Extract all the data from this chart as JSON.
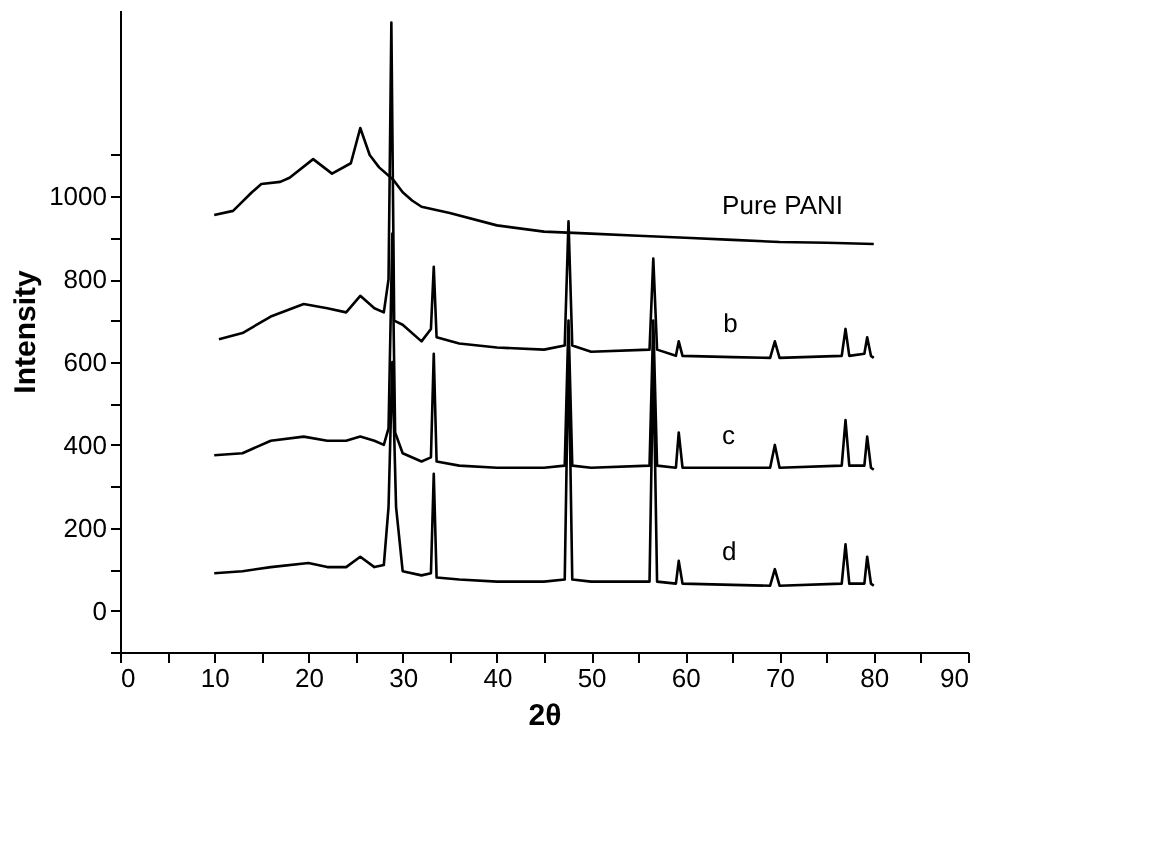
{
  "chart_data": {
    "type": "line",
    "xlabel": "2θ",
    "ylabel": "Intensity",
    "xlim": [
      0,
      90
    ],
    "ylim": [
      -100,
      1450
    ],
    "xticks": [
      0,
      {
        "value": 5,
        "label": null
      },
      10,
      {
        "value": 15,
        "label": null
      },
      20,
      {
        "value": 25,
        "label": null
      },
      30,
      {
        "value": 35,
        "label": null
      },
      40,
      {
        "value": 45,
        "label": null
      },
      50,
      {
        "value": 55,
        "label": null
      },
      60,
      {
        "value": 65,
        "label": null
      },
      70,
      {
        "value": 75,
        "label": null
      },
      80,
      {
        "value": 85,
        "label": null
      },
      90
    ],
    "yticks": [
      {
        "value": -100,
        "label": null
      },
      0,
      {
        "value": 100,
        "label": null
      },
      200,
      {
        "value": 300,
        "label": null
      },
      400,
      {
        "value": 500,
        "label": null
      },
      600,
      {
        "value": 700,
        "label": null
      },
      800,
      {
        "value": 900,
        "label": null
      },
      1000,
      {
        "value": 1100,
        "label": null
      }
    ],
    "grid": false,
    "legend": false,
    "marker": "none",
    "line_style": "solid",
    "series": [
      {
        "name": "Pure PANI",
        "color": "#000000",
        "x": [
          10,
          12,
          14,
          15,
          17,
          18,
          20.5,
          22.5,
          24.5,
          25.5,
          26.5,
          27.5,
          29,
          30,
          31,
          32,
          35,
          40,
          45,
          50,
          55,
          60,
          65,
          70,
          75,
          80
        ],
        "values": [
          955,
          965,
          1010,
          1030,
          1035,
          1045,
          1090,
          1055,
          1080,
          1165,
          1100,
          1070,
          1040,
          1010,
          990,
          975,
          960,
          930,
          915,
          910,
          905,
          900,
          895,
          890,
          888,
          885
        ]
      },
      {
        "name": "b",
        "color": "#000000",
        "x": [
          10.5,
          13,
          16,
          19.5,
          22,
          24,
          25.5,
          27,
          28,
          28.5,
          28.8,
          29.1,
          30,
          32,
          33,
          33.3,
          33.6,
          36,
          40,
          45,
          47.2,
          47.6,
          48,
          50,
          56.2,
          56.6,
          57,
          59,
          59.3,
          59.7,
          65,
          69,
          69.5,
          70,
          76.6,
          77,
          77.4,
          79,
          79.3,
          79.7,
          80
        ],
        "values": [
          655,
          670,
          710,
          740,
          730,
          720,
          760,
          730,
          720,
          800,
          1420,
          700,
          690,
          650,
          680,
          830,
          660,
          645,
          635,
          630,
          640,
          940,
          640,
          625,
          630,
          850,
          630,
          615,
          650,
          615,
          612,
          610,
          650,
          610,
          615,
          680,
          615,
          620,
          660,
          615,
          610
        ]
      },
      {
        "name": "c",
        "color": "#000000",
        "x": [
          10,
          13,
          16,
          19.5,
          22,
          24,
          25.5,
          27,
          28,
          28.5,
          28.9,
          29.2,
          30,
          32,
          33,
          33.3,
          33.6,
          36,
          40,
          45,
          47.2,
          47.6,
          48,
          50,
          56.2,
          56.6,
          57,
          59,
          59.3,
          59.7,
          65,
          69,
          69.5,
          70,
          76.6,
          77,
          77.4,
          79,
          79.3,
          79.7,
          80
        ],
        "values": [
          375,
          380,
          410,
          420,
          410,
          410,
          420,
          410,
          400,
          440,
          910,
          430,
          380,
          360,
          370,
          620,
          360,
          350,
          345,
          345,
          350,
          700,
          350,
          345,
          350,
          700,
          350,
          345,
          430,
          345,
          345,
          345,
          400,
          345,
          350,
          460,
          350,
          350,
          420,
          345,
          340
        ]
      },
      {
        "name": "d",
        "color": "#000000",
        "x": [
          10,
          13,
          16,
          20,
          22,
          24,
          25.5,
          27,
          28,
          28.5,
          28.9,
          29.3,
          30,
          32,
          33,
          33.3,
          33.6,
          36,
          40,
          45,
          47.2,
          47.6,
          48,
          50,
          56.2,
          56.6,
          57,
          59,
          59.3,
          59.7,
          65,
          69,
          69.5,
          70,
          76.6,
          77,
          77.4,
          79,
          79.3,
          79.7,
          80
        ],
        "values": [
          90,
          95,
          105,
          115,
          105,
          105,
          130,
          105,
          110,
          250,
          600,
          250,
          95,
          85,
          90,
          330,
          80,
          75,
          70,
          70,
          75,
          640,
          75,
          70,
          70,
          620,
          70,
          65,
          120,
          65,
          62,
          60,
          100,
          60,
          65,
          160,
          65,
          65,
          130,
          65,
          60
        ]
      }
    ]
  }
}
